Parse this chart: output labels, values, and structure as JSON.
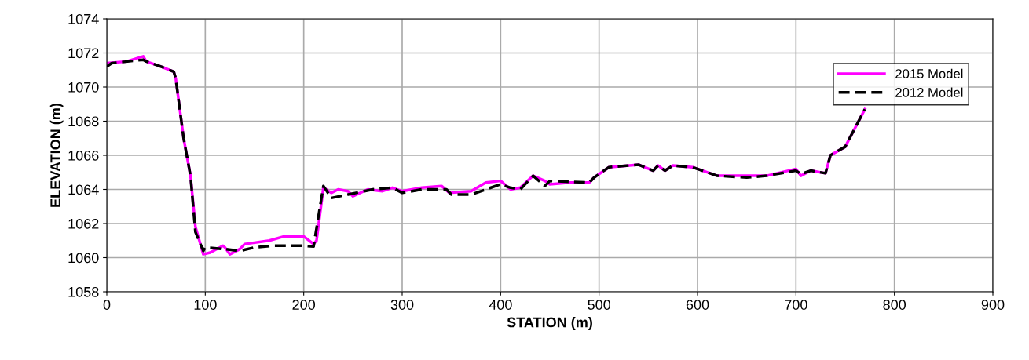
{
  "chart_data": {
    "type": "line",
    "xlabel": "STATION (m)",
    "ylabel": "ELEVATION (m)",
    "xlim": [
      0,
      900
    ],
    "xticks": [
      0,
      100,
      200,
      300,
      400,
      500,
      600,
      700,
      800,
      900
    ],
    "ylim": [
      1058,
      1074
    ],
    "yticks": [
      1058,
      1060,
      1062,
      1064,
      1066,
      1068,
      1070,
      1072,
      1074
    ],
    "grid": true,
    "legend": "top right",
    "series": [
      {
        "name": "2015 Model",
        "color": "#ff00ff",
        "line_style": "solid",
        "x": [
          0,
          20,
          37,
          40,
          55,
          68,
          70,
          78,
          85,
          90,
          98,
          105,
          118,
          120,
          125,
          135,
          140,
          165,
          180,
          200,
          210,
          213,
          220,
          228,
          235,
          245,
          250,
          265,
          280,
          290,
          300,
          320,
          340,
          348,
          370,
          385,
          400,
          410,
          420,
          433,
          445,
          450,
          470,
          490,
          495,
          510,
          540,
          555,
          560,
          567,
          575,
          595,
          620,
          650,
          670,
          700,
          705,
          715,
          730,
          735,
          750,
          770
        ],
        "values": [
          1071.4,
          1071.5,
          1071.8,
          1071.5,
          1071.2,
          1070.9,
          1070.5,
          1067,
          1064.8,
          1061.8,
          1060.2,
          1060.3,
          1060.7,
          1060.6,
          1060.2,
          1060.5,
          1060.8,
          1061.0,
          1061.25,
          1061.25,
          1060.8,
          1061,
          1064.1,
          1063.8,
          1064.0,
          1063.9,
          1063.6,
          1064.0,
          1063.9,
          1064.1,
          1063.9,
          1064.1,
          1064.2,
          1063.8,
          1063.9,
          1064.4,
          1064.5,
          1064.0,
          1064.1,
          1064.8,
          1064.5,
          1064.3,
          1064.4,
          1064.4,
          1064.7,
          1065.3,
          1065.45,
          1065.1,
          1065.4,
          1065.1,
          1065.4,
          1065.3,
          1064.8,
          1064.8,
          1064.8,
          1065.2,
          1064.8,
          1065.1,
          1064.95,
          1066.0,
          1066.5,
          1068.7
        ]
      },
      {
        "name": "2012 Model",
        "color": "#000000",
        "line_style": "dashed",
        "x": [
          0,
          5,
          37,
          40,
          55,
          68,
          70,
          78,
          85,
          90,
          98,
          100,
          120,
          135,
          150,
          170,
          200,
          210,
          220,
          228,
          245,
          270,
          290,
          300,
          310,
          320,
          345,
          350,
          370,
          400,
          410,
          420,
          433,
          445,
          450,
          490,
          495,
          510,
          540,
          555,
          560,
          567,
          575,
          595,
          620,
          650,
          670,
          700,
          705,
          715,
          730,
          735,
          750,
          770
        ],
        "values": [
          1071.2,
          1071.4,
          1071.6,
          1071.5,
          1071.2,
          1070.9,
          1070.5,
          1067,
          1064.8,
          1061.5,
          1060.4,
          1060.6,
          1060.5,
          1060.4,
          1060.6,
          1060.7,
          1060.7,
          1060.65,
          1064.2,
          1063.5,
          1063.7,
          1064.0,
          1064.1,
          1063.8,
          1063.9,
          1064.0,
          1064.0,
          1063.7,
          1063.7,
          1064.3,
          1064.1,
          1064.0,
          1064.8,
          1064.2,
          1064.5,
          1064.4,
          1064.7,
          1065.3,
          1065.45,
          1065.1,
          1065.4,
          1065.1,
          1065.4,
          1065.3,
          1064.8,
          1064.7,
          1064.8,
          1065.1,
          1064.9,
          1065.1,
          1064.95,
          1066.0,
          1066.5,
          1068.7
        ]
      }
    ]
  }
}
